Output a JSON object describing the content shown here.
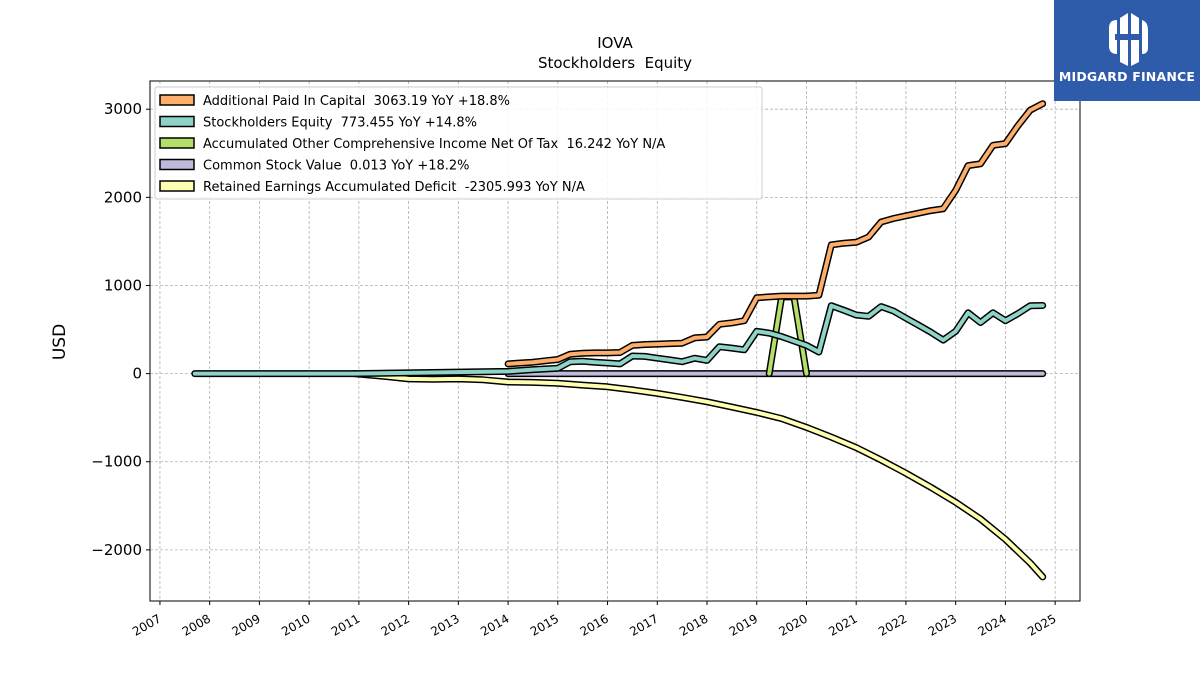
{
  "brand": {
    "name": "MIDGARD FINANCE",
    "logo_icon": "midgard-logo-icon",
    "color": "#2f5bab"
  },
  "chart_data": {
    "type": "line",
    "title": "IOVA",
    "subtitle": "Stockholders  Equity",
    "xlabel": "",
    "ylabel": "USD",
    "xlim": [
      2006.8,
      2025.5
    ],
    "ylim": [
      -2580,
      3320
    ],
    "x_ticks": [
      "2007",
      "2008",
      "2009",
      "2010",
      "2011",
      "2012",
      "2013",
      "2014",
      "2015",
      "2016",
      "2017",
      "2018",
      "2019",
      "2020",
      "2021",
      "2022",
      "2023",
      "2024",
      "2025"
    ],
    "y_ticks": [
      3000,
      2000,
      1000,
      0,
      -1000,
      -2000
    ],
    "y_tick_labels": [
      "3000",
      "2000",
      "1000",
      "0",
      "−1000",
      "−2000"
    ],
    "grid": true,
    "legend_position": "top-left",
    "series": [
      {
        "name": "Additional Paid In Capital",
        "legend_label": "Additional Paid In Capital  3063.19 YoY +18.8%",
        "color": "#fdae6b",
        "points": [
          [
            2014.0,
            110
          ],
          [
            2014.25,
            120
          ],
          [
            2014.5,
            130
          ],
          [
            2014.75,
            145
          ],
          [
            2015.0,
            160
          ],
          [
            2015.25,
            220
          ],
          [
            2015.5,
            230
          ],
          [
            2015.75,
            235
          ],
          [
            2016.0,
            235
          ],
          [
            2016.25,
            240
          ],
          [
            2016.5,
            320
          ],
          [
            2016.75,
            330
          ],
          [
            2017.0,
            335
          ],
          [
            2017.25,
            340
          ],
          [
            2017.5,
            345
          ],
          [
            2017.75,
            405
          ],
          [
            2018.0,
            415
          ],
          [
            2018.25,
            560
          ],
          [
            2018.5,
            575
          ],
          [
            2018.75,
            600
          ],
          [
            2019.0,
            860
          ],
          [
            2019.25,
            870
          ],
          [
            2019.5,
            880
          ],
          [
            2019.75,
            880
          ],
          [
            2020.0,
            880
          ],
          [
            2020.25,
            890
          ],
          [
            2020.5,
            1460
          ],
          [
            2020.75,
            1480
          ],
          [
            2021.0,
            1490
          ],
          [
            2021.25,
            1550
          ],
          [
            2021.5,
            1720
          ],
          [
            2021.75,
            1760
          ],
          [
            2022.0,
            1790
          ],
          [
            2022.25,
            1820
          ],
          [
            2022.5,
            1850
          ],
          [
            2022.75,
            1870
          ],
          [
            2023.0,
            2080
          ],
          [
            2023.25,
            2360
          ],
          [
            2023.5,
            2380
          ],
          [
            2023.75,
            2590
          ],
          [
            2024.0,
            2610
          ],
          [
            2024.25,
            2810
          ],
          [
            2024.5,
            2990
          ],
          [
            2024.75,
            3063
          ]
        ]
      },
      {
        "name": "Stockholders Equity",
        "legend_label": "Stockholders Equity  773.455 YoY +14.8%",
        "color": "#8dd3c7",
        "points": [
          [
            2007.7,
            0
          ],
          [
            2010.9,
            0
          ],
          [
            2014.0,
            25
          ],
          [
            2014.5,
            45
          ],
          [
            2015.0,
            60
          ],
          [
            2015.25,
            135
          ],
          [
            2015.5,
            140
          ],
          [
            2015.75,
            130
          ],
          [
            2016.0,
            120
          ],
          [
            2016.25,
            110
          ],
          [
            2016.5,
            200
          ],
          [
            2016.75,
            195
          ],
          [
            2017.0,
            175
          ],
          [
            2017.25,
            155
          ],
          [
            2017.5,
            135
          ],
          [
            2017.75,
            175
          ],
          [
            2018.0,
            150
          ],
          [
            2018.25,
            305
          ],
          [
            2018.5,
            290
          ],
          [
            2018.75,
            270
          ],
          [
            2019.0,
            480
          ],
          [
            2019.25,
            460
          ],
          [
            2019.5,
            420
          ],
          [
            2019.75,
            370
          ],
          [
            2020.0,
            320
          ],
          [
            2020.25,
            245
          ],
          [
            2020.5,
            770
          ],
          [
            2020.75,
            720
          ],
          [
            2021.0,
            665
          ],
          [
            2021.25,
            650
          ],
          [
            2021.5,
            760
          ],
          [
            2021.75,
            710
          ],
          [
            2022.0,
            630
          ],
          [
            2022.25,
            550
          ],
          [
            2022.5,
            470
          ],
          [
            2022.75,
            380
          ],
          [
            2023.0,
            480
          ],
          [
            2023.25,
            690
          ],
          [
            2023.5,
            580
          ],
          [
            2023.75,
            690
          ],
          [
            2024.0,
            600
          ],
          [
            2024.25,
            680
          ],
          [
            2024.5,
            770
          ],
          [
            2024.75,
            773
          ]
        ]
      },
      {
        "name": "Accumulated Other Comprehensive Income Net Of Tax",
        "legend_label": "Accumulated Other Comprehensive Income Net Of Tax  16.242 YoY N/A",
        "color": "#b3de69",
        "points": [
          [
            2019.25,
            0
          ],
          [
            2019.5,
            870
          ],
          [
            2019.75,
            870
          ],
          [
            2020.0,
            0
          ]
        ]
      },
      {
        "name": "Common Stock Value",
        "legend_label": "Common Stock Value  0.013 YoY +18.2%",
        "color": "#bebada",
        "points": [
          [
            2014.0,
            0
          ],
          [
            2024.75,
            0
          ]
        ]
      },
      {
        "name": "Retained Earnings Accumulated Deficit",
        "legend_label": "Retained Earnings Accumulated Deficit  -2305.993 YoY N/A",
        "color": "#ffffb3",
        "points": [
          [
            2010.9,
            0
          ],
          [
            2011.5,
            -30
          ],
          [
            2012.0,
            -60
          ],
          [
            2012.5,
            -65
          ],
          [
            2013.0,
            -60
          ],
          [
            2013.5,
            -70
          ],
          [
            2014.0,
            -95
          ],
          [
            2014.5,
            -100
          ],
          [
            2015.0,
            -110
          ],
          [
            2015.5,
            -130
          ],
          [
            2016.0,
            -150
          ],
          [
            2016.5,
            -185
          ],
          [
            2017.0,
            -225
          ],
          [
            2017.5,
            -270
          ],
          [
            2018.0,
            -320
          ],
          [
            2018.5,
            -380
          ],
          [
            2019.0,
            -440
          ],
          [
            2019.5,
            -510
          ],
          [
            2020.0,
            -610
          ],
          [
            2020.5,
            -720
          ],
          [
            2021.0,
            -840
          ],
          [
            2021.5,
            -980
          ],
          [
            2022.0,
            -1130
          ],
          [
            2022.5,
            -1290
          ],
          [
            2023.0,
            -1460
          ],
          [
            2023.5,
            -1650
          ],
          [
            2024.0,
            -1880
          ],
          [
            2024.5,
            -2150
          ],
          [
            2024.75,
            -2306
          ]
        ]
      }
    ]
  }
}
